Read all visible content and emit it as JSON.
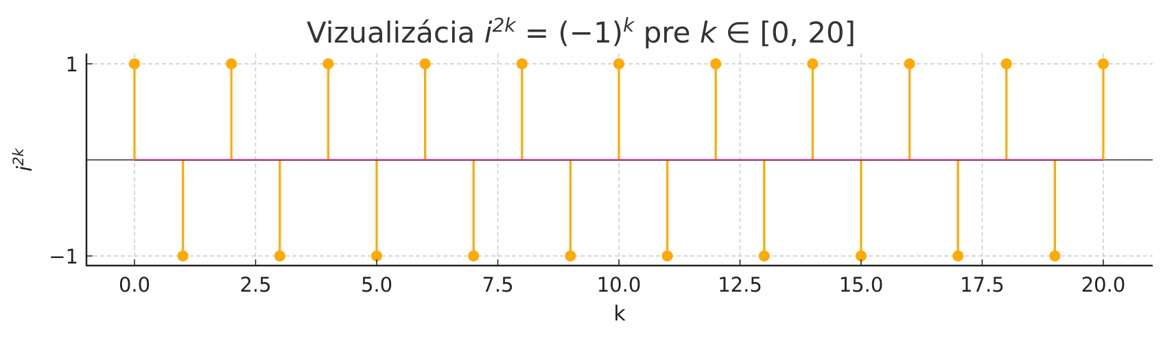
{
  "chart_data": {
    "type": "stem",
    "title": "Vizualizácia i^{2k} = (−1)^k pre k ∈ [0, 20]",
    "title_parts": {
      "prefix": "Vizualizácia ",
      "base": "i",
      "exp": "2k",
      "eq": " = (−1)",
      "exp2": "k",
      "suffix_pre": " pre ",
      "var": "k",
      "suffix": " ∈ [0, 20]"
    },
    "xlabel": "k",
    "ylabel_base": "i",
    "ylabel_exp": "2k",
    "xlim": [
      -0.98,
      21.0
    ],
    "ylim": [
      -1.1,
      1.1
    ],
    "xticks": [
      0.0,
      2.5,
      5.0,
      7.5,
      10.0,
      12.5,
      15.0,
      17.5,
      20.0
    ],
    "xtick_labels": [
      "0.0",
      "2.5",
      "5.0",
      "7.5",
      "10.0",
      "12.5",
      "15.0",
      "17.5",
      "20.0"
    ],
    "yticks": [
      1,
      -1
    ],
    "ytick_labels": [
      "1",
      "−1"
    ],
    "grid": true,
    "x": [
      0,
      1,
      2,
      3,
      4,
      5,
      6,
      7,
      8,
      9,
      10,
      11,
      12,
      13,
      14,
      15,
      16,
      17,
      18,
      19,
      20
    ],
    "values": [
      1,
      -1,
      1,
      -1,
      1,
      -1,
      1,
      -1,
      1,
      -1,
      1,
      -1,
      1,
      -1,
      1,
      -1,
      1,
      -1,
      1,
      -1,
      1
    ],
    "colors": {
      "stem": "#FFAA00",
      "marker": "#FFAA00",
      "baseline": "#E040B0",
      "zero_line": "#000000",
      "grid": "#CCCCCC",
      "axis": "#222222"
    }
  }
}
